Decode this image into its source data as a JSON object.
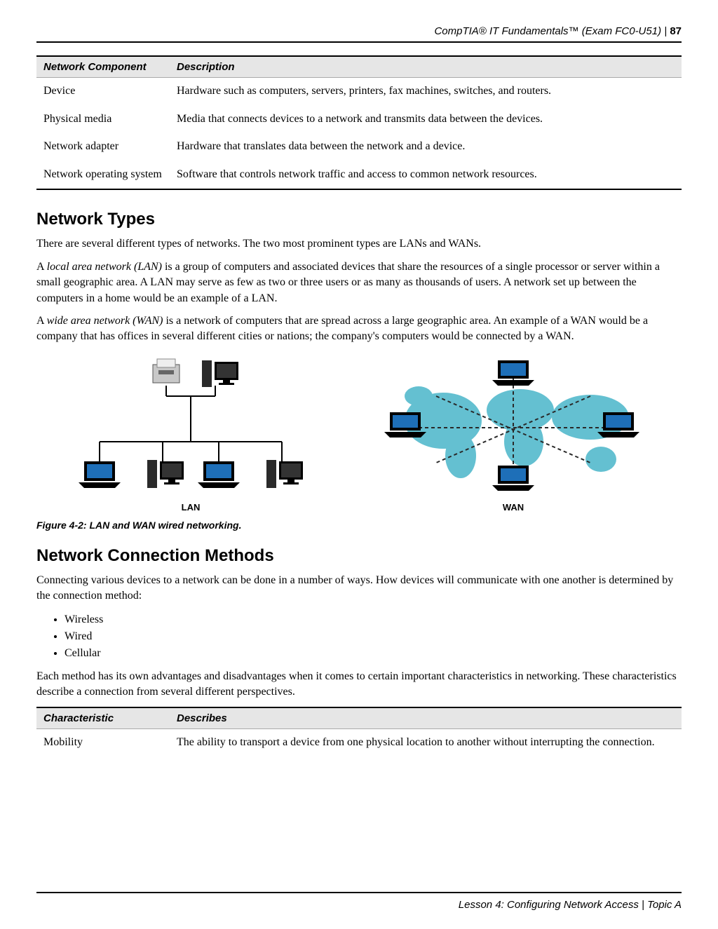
{
  "header": {
    "title": "CompTIA® IT Fundamentals™ (Exam FC0-U51)  |  ",
    "page": "87"
  },
  "table1": {
    "headers": [
      "Network Component",
      "Description"
    ],
    "rows": [
      [
        "Device",
        "Hardware such as computers, servers, printers, fax machines, switches, and routers."
      ],
      [
        "Physical media",
        "Media that connects devices to a network and transmits data between the devices."
      ],
      [
        "Network adapter",
        "Hardware that translates data between the network and a device."
      ],
      [
        "Network operating system",
        "Software that controls network traffic and access to common network resources."
      ]
    ]
  },
  "section1": {
    "heading": "Network Types",
    "p1": "There are several different types of networks. The two most prominent types are LANs and WANs.",
    "p2a": "A ",
    "p2b": "local area network (LAN)",
    "p2c": " is a group of computers and associated devices that share the resources of a single processor or server within a small geographic area. A LAN may serve as few as two or three users or as many as thousands of users. A network set up between the computers in a home would be an example of a LAN.",
    "p3a": "A ",
    "p3b": "wide area network (WAN)",
    "p3c": " is a network of computers that are spread across a large geographic area. An example of a WAN would be a company that has offices in several different cities or nations; the company's computers would be connected by a WAN."
  },
  "figure": {
    "lan_label": "LAN",
    "wan_label": "WAN",
    "caption": "Figure 4-2: LAN and WAN wired networking.",
    "colors": {
      "laptop_body": "#000000",
      "laptop_screen": "#1e6fb8",
      "tower": "#2a2a2a",
      "monitor": "#000000",
      "printer": "#c8c8c8",
      "line": "#000000",
      "dash": "#2a2a2a",
      "map": "#49b6c9"
    }
  },
  "section2": {
    "heading": "Network Connection Methods",
    "p1": "Connecting various devices to a network can be done in a number of ways. How devices will communicate with one another is determined by the connection method:",
    "bullets": [
      "Wireless",
      "Wired",
      "Cellular"
    ],
    "p2": "Each method has its own advantages and disadvantages when it comes to certain important characteristics in networking. These characteristics describe a connection from several different perspectives."
  },
  "table2": {
    "headers": [
      "Characteristic",
      "Describes"
    ],
    "rows": [
      [
        "Mobility",
        "The ability to transport a device from one physical location to another without interrupting the connection."
      ]
    ]
  },
  "footer": {
    "text": "Lesson 4: Configuring Network Access  |  Topic A"
  }
}
